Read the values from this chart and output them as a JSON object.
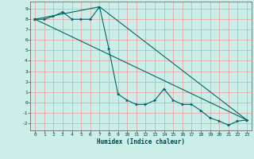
{
  "xlabel": "Humidex (Indice chaleur)",
  "background_color": "#cceee8",
  "grid_color": "#ee9999",
  "line_color": "#006666",
  "xlim": [
    -0.5,
    23.5
  ],
  "ylim": [
    -2.7,
    9.7
  ],
  "xticks": [
    0,
    1,
    2,
    3,
    4,
    5,
    6,
    7,
    8,
    9,
    10,
    11,
    12,
    13,
    14,
    15,
    16,
    17,
    18,
    19,
    20,
    21,
    22,
    23
  ],
  "yticks": [
    -2,
    -1,
    0,
    1,
    2,
    3,
    4,
    5,
    6,
    7,
    8,
    9
  ],
  "line1_x": [
    0,
    1,
    2,
    3,
    4,
    5,
    6,
    7,
    8,
    9,
    10,
    11,
    12,
    13,
    14,
    15,
    16,
    17,
    18,
    19,
    20,
    21,
    22,
    23
  ],
  "line1_y": [
    8.0,
    8.0,
    8.3,
    8.7,
    8.0,
    8.0,
    8.0,
    9.2,
    5.2,
    0.8,
    0.2,
    -0.2,
    -0.2,
    0.2,
    1.3,
    0.2,
    -0.2,
    -0.2,
    -0.8,
    -1.5,
    -1.8,
    -2.2,
    -1.8,
    -1.7
  ],
  "line2_x": [
    0,
    7,
    23
  ],
  "line2_y": [
    8.0,
    9.2,
    -1.7
  ],
  "line3_x": [
    0,
    23
  ],
  "line3_y": [
    8.0,
    -1.7
  ]
}
